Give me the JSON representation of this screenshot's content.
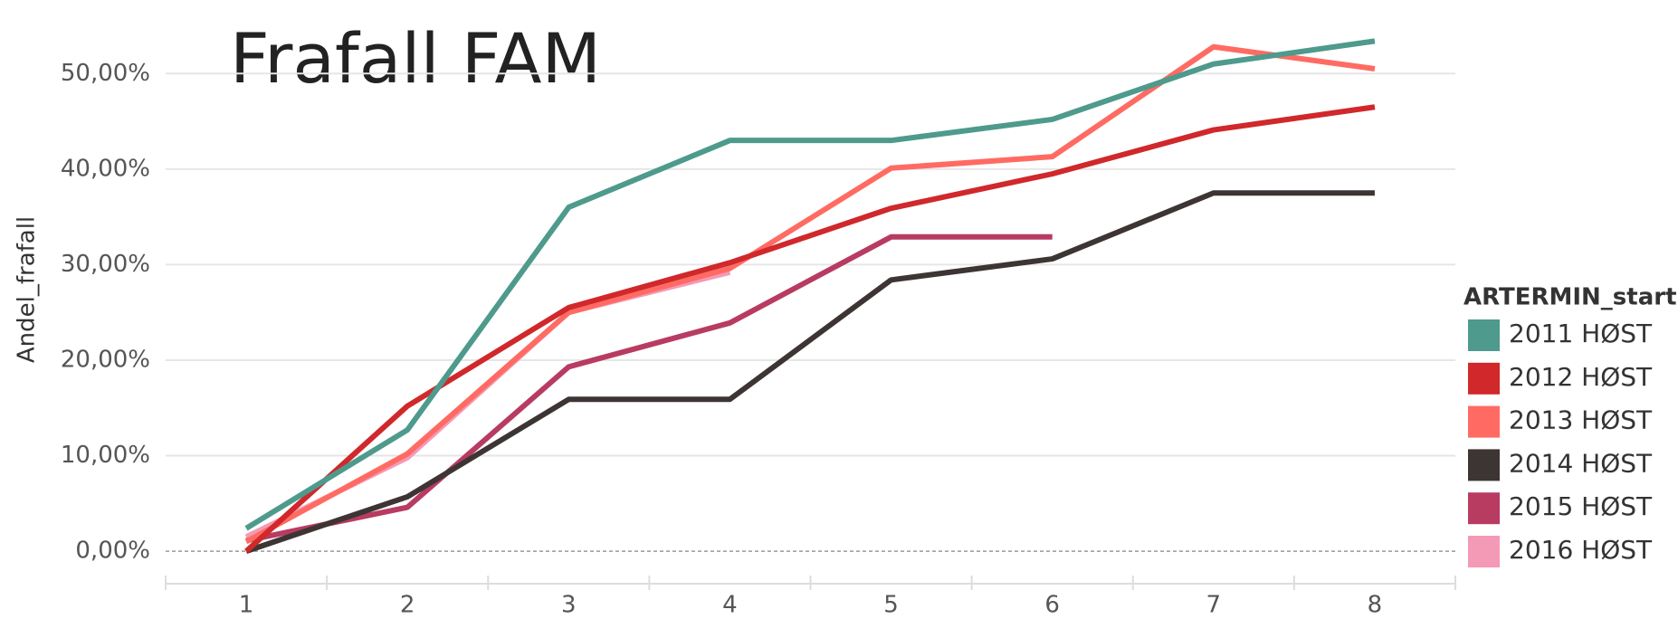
{
  "chart_data": {
    "type": "line",
    "title": "Frafall FAM",
    "y_label": "Andel_frafall",
    "legend_title": "ARTERMIN_start",
    "categories": [
      "1",
      "2",
      "3",
      "4",
      "5",
      "6",
      "7",
      "8"
    ],
    "series": [
      {
        "name": "2011 HØST",
        "color": "#4e9a8c",
        "values": [
          2.4,
          12.7,
          36.0,
          43.0,
          43.0,
          45.2,
          51.0,
          53.4
        ]
      },
      {
        "name": "2012 HØST",
        "color": "#d0282b",
        "values": [
          0.0,
          15.2,
          25.5,
          30.2,
          35.9,
          39.5,
          44.1,
          46.5
        ]
      },
      {
        "name": "2013 HØST",
        "color": "#ff6b63",
        "values": [
          1.0,
          10.2,
          25.0,
          29.6,
          40.1,
          41.3,
          52.8,
          50.5
        ]
      },
      {
        "name": "2014 HØST",
        "color": "#3d3533",
        "values": [
          0.0,
          5.7,
          15.9,
          15.9,
          28.4,
          30.6,
          37.5,
          37.5
        ]
      },
      {
        "name": "2015 HØST",
        "color": "#b83b62",
        "values": [
          1.1,
          4.6,
          19.3,
          23.9,
          32.9,
          32.9,
          null,
          null
        ]
      },
      {
        "name": "2016 HØST",
        "color": "#f49ab6",
        "values": [
          1.5,
          9.8,
          25.0,
          29.2,
          null,
          null,
          null,
          null
        ]
      }
    ],
    "ylim": [
      -3.4,
      57.7
    ],
    "yticks": [
      {
        "value": 0,
        "label": "0,00%"
      },
      {
        "value": 10,
        "label": "10,00%"
      },
      {
        "value": 20,
        "label": "20,00%"
      },
      {
        "value": 30,
        "label": "30,00%"
      },
      {
        "value": 40,
        "label": "40,00%"
      },
      {
        "value": 50,
        "label": "50,00%"
      }
    ],
    "grid": true
  }
}
